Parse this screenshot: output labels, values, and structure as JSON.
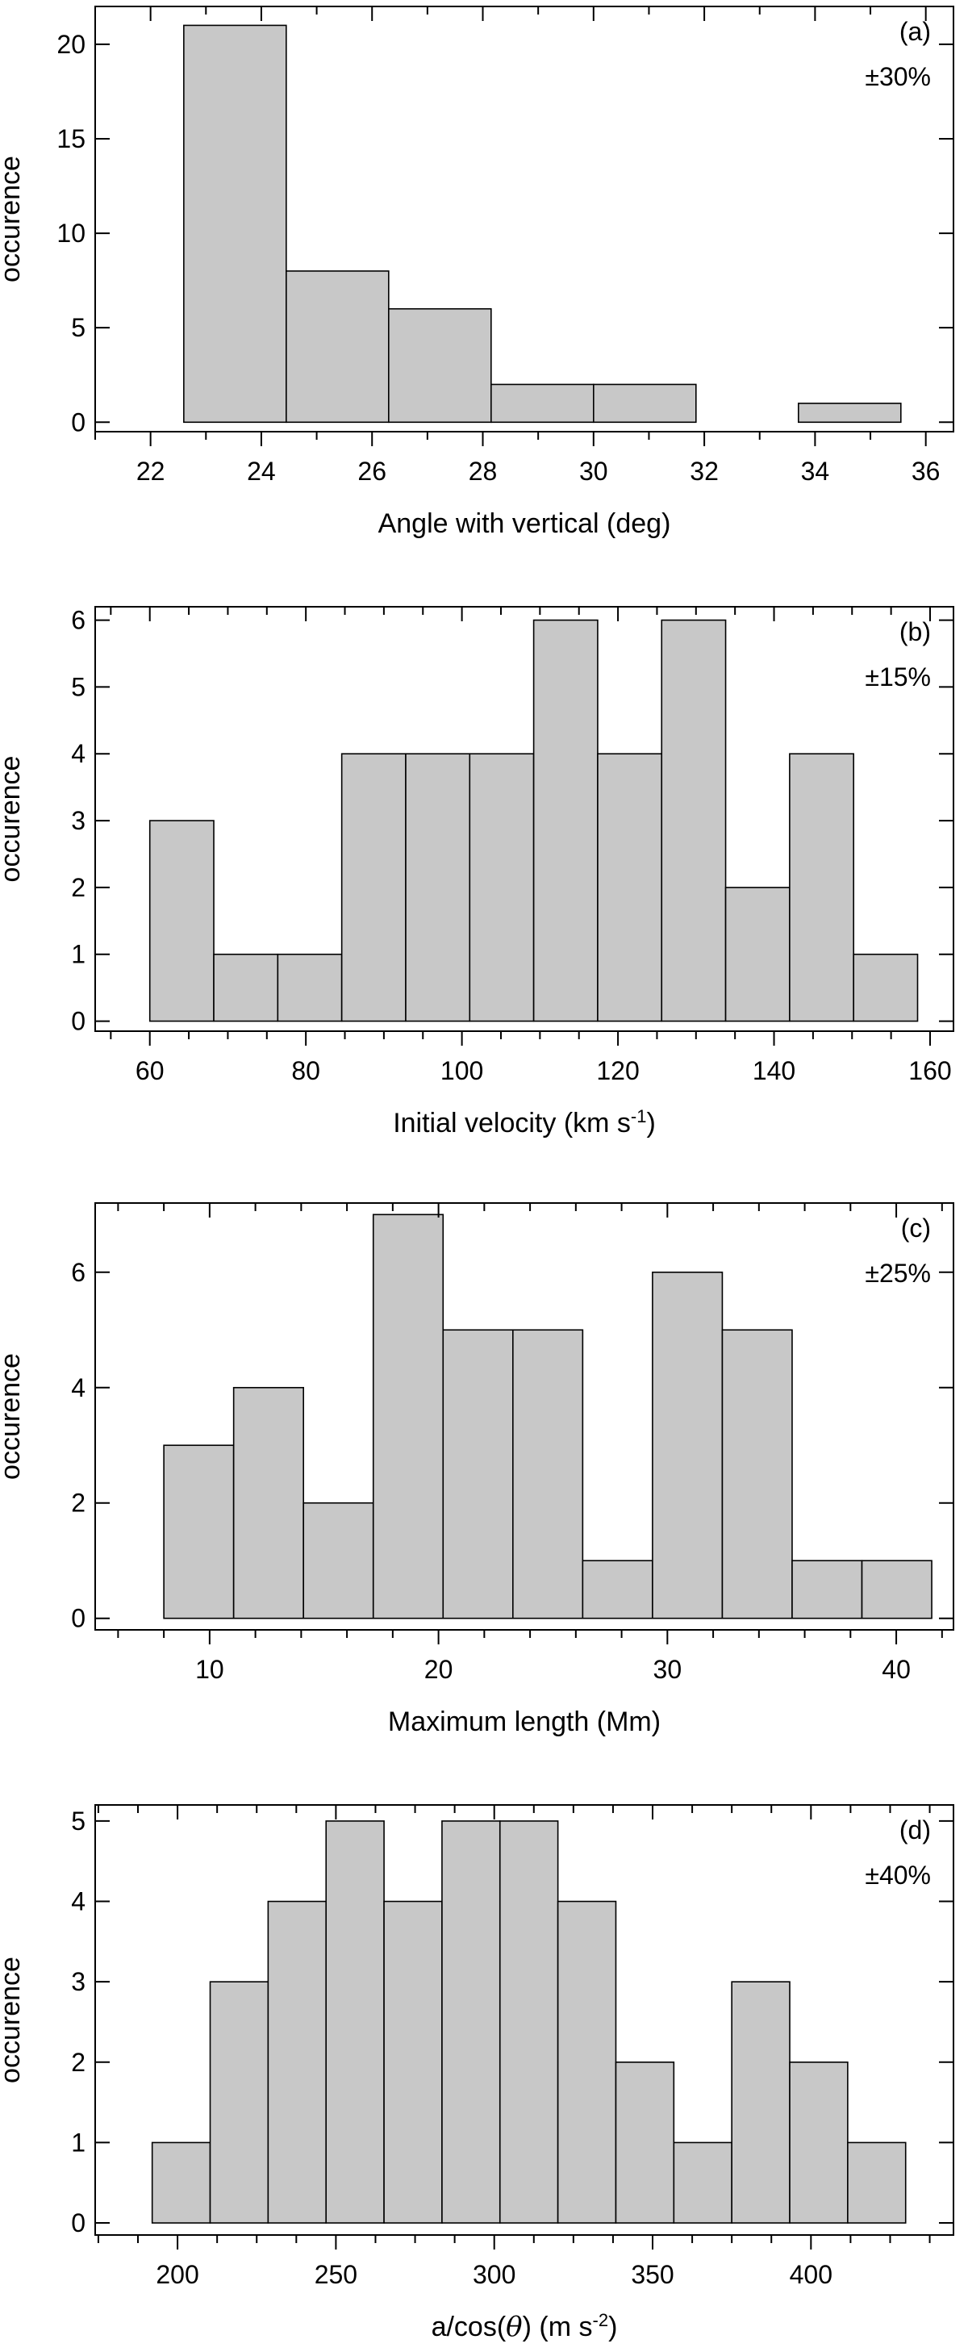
{
  "chart_data": [
    {
      "type": "bar",
      "panel_label": "(a)",
      "uncertainty": "±30%",
      "xlabel": "Angle with vertical (deg)",
      "ylabel": "occurence",
      "xlim": [
        21,
        36.5
      ],
      "ylim": [
        -0.5,
        22
      ],
      "xticks": [
        22,
        24,
        26,
        28,
        30,
        32,
        34,
        36
      ],
      "xtick_labels": [
        "22",
        "24",
        "26",
        "28",
        "30",
        "32",
        "34",
        "36"
      ],
      "yticks": [
        0,
        5,
        10,
        15,
        20
      ],
      "ytick_labels": [
        "0",
        "5",
        "10",
        "15",
        "20"
      ],
      "bin_edges": [
        22.6,
        24.45,
        26.3,
        28.15,
        30.0,
        31.85,
        33.7,
        35.55
      ],
      "values": [
        21,
        8,
        6,
        2,
        2,
        0,
        1
      ]
    },
    {
      "type": "bar",
      "panel_label": "(b)",
      "uncertainty": "±15%",
      "xlabel": "Initial velocity (km s",
      "xlabel_sup": "-1",
      "xlabel_end": ")",
      "ylabel": "occurence",
      "xlim": [
        53,
        163
      ],
      "ylim": [
        -0.15,
        6.2
      ],
      "xticks": [
        60,
        80,
        100,
        120,
        140,
        160
      ],
      "xtick_labels": [
        "60",
        "80",
        "100",
        "120",
        "140",
        "160"
      ],
      "yticks": [
        0,
        1,
        2,
        3,
        4,
        5,
        6
      ],
      "ytick_labels": [
        "0",
        "1",
        "2",
        "3",
        "4",
        "5",
        "6"
      ],
      "bin_edges": [
        60,
        68.2,
        76.4,
        84.6,
        92.8,
        101,
        109.2,
        117.4,
        125.6,
        133.8,
        142,
        150.2,
        158.4
      ],
      "values": [
        3,
        1,
        1,
        4,
        4,
        4,
        6,
        4,
        6,
        2,
        4,
        1
      ]
    },
    {
      "type": "bar",
      "panel_label": "(c)",
      "uncertainty": "±25%",
      "xlabel": "Maximum length (Mm)",
      "ylabel": "occurence",
      "xlim": [
        5,
        42.5
      ],
      "ylim": [
        -0.2,
        7.2
      ],
      "xticks": [
        10,
        20,
        30,
        40
      ],
      "xtick_labels": [
        "10",
        "20",
        "30",
        "40"
      ],
      "yticks": [
        0,
        2,
        4,
        6
      ],
      "ytick_labels": [
        "0",
        "2",
        "4",
        "6"
      ],
      "bin_edges": [
        8.0,
        11.05,
        14.1,
        17.15,
        20.2,
        23.25,
        26.3,
        29.35,
        32.4,
        35.45,
        38.5,
        41.55
      ],
      "values": [
        3,
        4,
        2,
        7,
        5,
        5,
        1,
        6,
        5,
        1,
        1
      ]
    },
    {
      "type": "bar",
      "panel_label": "(d)",
      "uncertainty": "±40%",
      "xlabel": "a/cos(",
      "xlabel_theta": "θ",
      "xlabel_mid": ")  (m s",
      "xlabel_sup": "-2",
      "xlabel_end": ")",
      "ylabel": "occurence",
      "xlim": [
        174,
        445
      ],
      "ylim": [
        -0.15,
        5.2
      ],
      "xticks": [
        200,
        250,
        300,
        350,
        400
      ],
      "xtick_labels": [
        "200",
        "250",
        "300",
        "350",
        "400"
      ],
      "yticks": [
        0,
        1,
        2,
        3,
        4,
        5
      ],
      "ytick_labels": [
        "0",
        "1",
        "2",
        "3",
        "4",
        "5"
      ],
      "bin_edges": [
        192,
        210.3,
        228.6,
        246.9,
        265.2,
        283.5,
        301.8,
        320.1,
        338.4,
        356.7,
        375,
        393.3,
        411.6,
        429.9
      ],
      "values": [
        1,
        3,
        4,
        5,
        4,
        5,
        5,
        4,
        2,
        1,
        3,
        2,
        1
      ]
    }
  ]
}
